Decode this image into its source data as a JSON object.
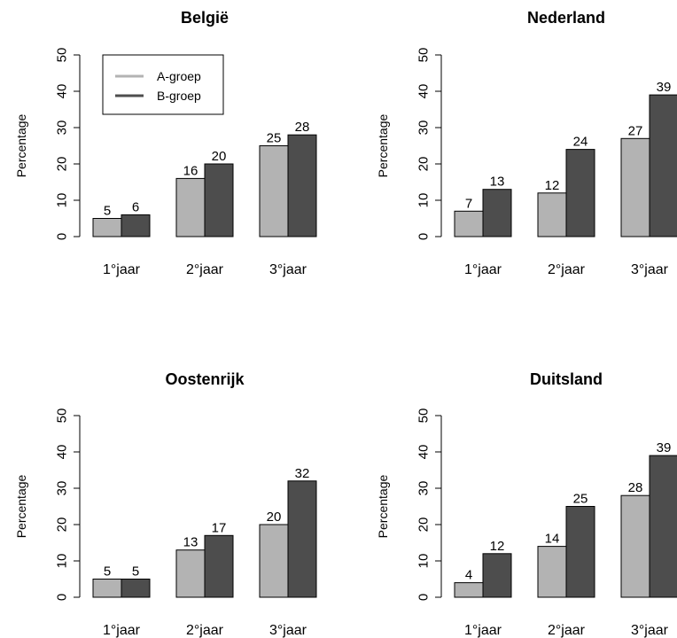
{
  "colors": {
    "a_group": "#b3b3b3",
    "b_group": "#4d4d4d",
    "border": "#000000"
  },
  "chart_data": [
    {
      "type": "bar",
      "title": "België",
      "ylabel": "Percentage",
      "ylim": [
        0,
        50
      ],
      "yticks": [
        "0",
        "10",
        "20",
        "30",
        "40",
        "50"
      ],
      "categories": [
        "1°jaar",
        "2°jaar",
        "3°jaar"
      ],
      "legend": {
        "position": "top-left",
        "entries": [
          "A-groep",
          "B-groep"
        ]
      },
      "series": [
        {
          "name": "A-groep",
          "values": [
            5,
            16,
            25
          ]
        },
        {
          "name": "B-groep",
          "values": [
            6,
            20,
            28
          ]
        }
      ]
    },
    {
      "type": "bar",
      "title": "Nederland",
      "ylabel": "Percentage",
      "ylim": [
        0,
        50
      ],
      "yticks": [
        "0",
        "10",
        "20",
        "30",
        "40",
        "50"
      ],
      "categories": [
        "1°jaar",
        "2°jaar",
        "3°jaar"
      ],
      "series": [
        {
          "name": "A-groep",
          "values": [
            7,
            12,
            27
          ]
        },
        {
          "name": "B-groep",
          "values": [
            13,
            24,
            39
          ]
        }
      ]
    },
    {
      "type": "bar",
      "title": "Oostenrijk",
      "ylabel": "Percentage",
      "ylim": [
        0,
        50
      ],
      "yticks": [
        "0",
        "10",
        "20",
        "30",
        "40",
        "50"
      ],
      "categories": [
        "1°jaar",
        "2°jaar",
        "3°jaar"
      ],
      "series": [
        {
          "name": "A-groep",
          "values": [
            5,
            13,
            20
          ]
        },
        {
          "name": "B-groep",
          "values": [
            5,
            17,
            32
          ]
        }
      ]
    },
    {
      "type": "bar",
      "title": "Duitsland",
      "ylabel": "Percentage",
      "ylim": [
        0,
        50
      ],
      "yticks": [
        "0",
        "10",
        "20",
        "30",
        "40",
        "50"
      ],
      "categories": [
        "1°jaar",
        "2°jaar",
        "3°jaar"
      ],
      "series": [
        {
          "name": "A-groep",
          "values": [
            4,
            14,
            28
          ]
        },
        {
          "name": "B-groep",
          "values": [
            12,
            25,
            39
          ]
        }
      ]
    }
  ]
}
